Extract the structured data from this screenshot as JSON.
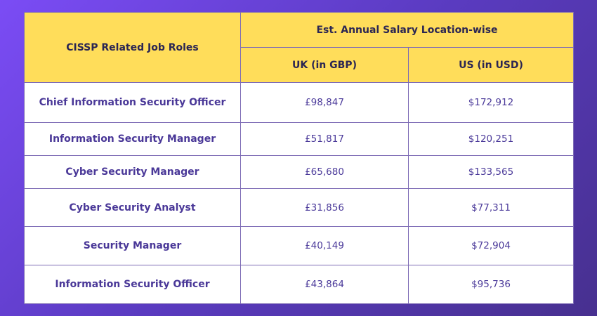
{
  "header": {
    "role_col": "CISSP Related Job Roles",
    "salary_group": "Est. Annual Salary Location-wise",
    "uk_col": "UK (in GBP)",
    "us_col": "US (in USD)"
  },
  "rows": [
    {
      "role": "Chief Information Security Officer",
      "uk": "£98,847",
      "us": "$172,912"
    },
    {
      "role": "Information Security Manager",
      "uk": "£51,817",
      "us": "$120,251"
    },
    {
      "role": "Cyber Security Manager",
      "uk": "£65,680",
      "us": "$133,565"
    },
    {
      "role": "Cyber Security Analyst",
      "uk": "£31,856",
      "us": "$77,311"
    },
    {
      "role": "Security Manager",
      "uk": "£40,149",
      "us": "$72,904"
    },
    {
      "role": "Information Security Officer",
      "uk": "£43,864",
      "us": "$95,736"
    }
  ]
}
